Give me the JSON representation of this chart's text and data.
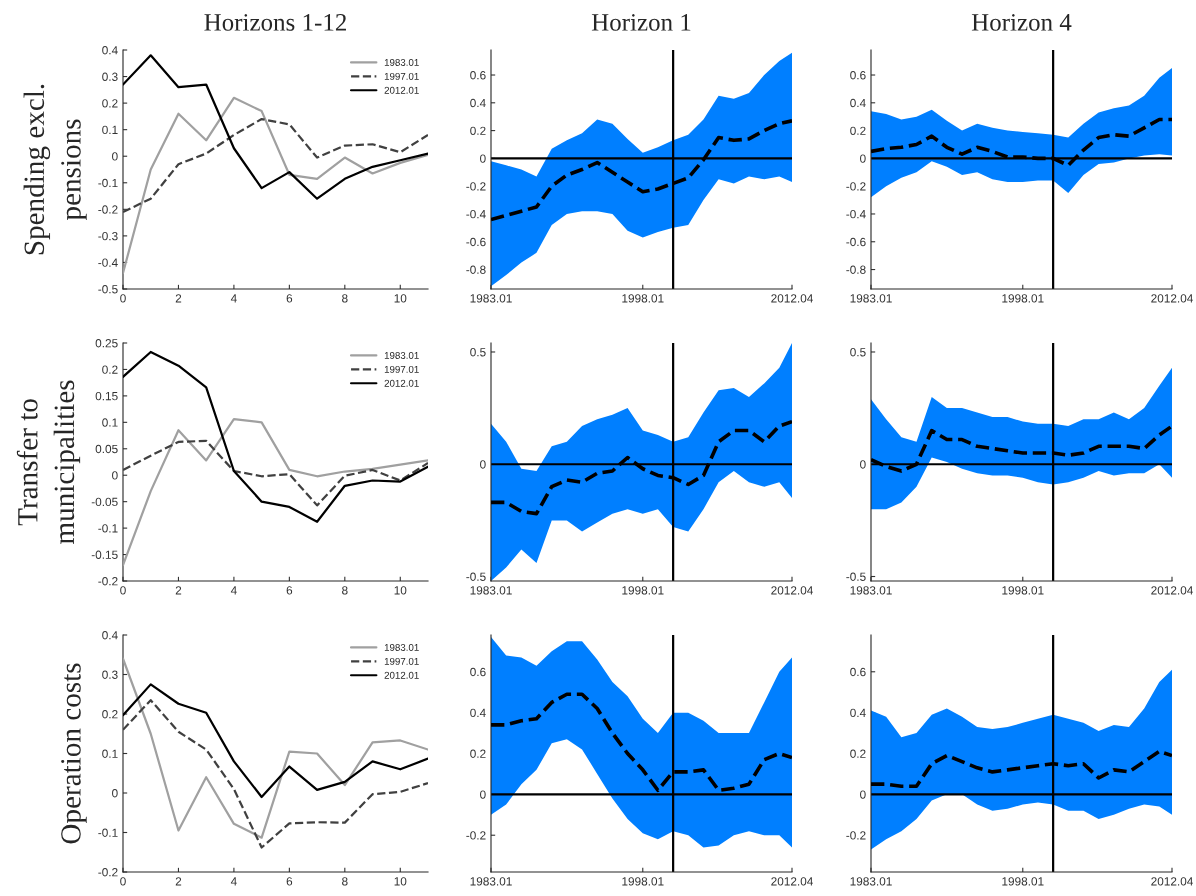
{
  "chart_data": [
    {
      "type": "line",
      "title": "Horizons 1-12",
      "ylabel": "Spending excl.\npensions",
      "x": [
        0,
        1,
        2,
        3,
        4,
        5,
        6,
        7,
        8,
        9,
        10,
        11
      ],
      "xlim": [
        0,
        11
      ],
      "xticks": [
        0,
        2,
        4,
        6,
        8,
        10
      ],
      "ylim": [
        -0.5,
        0.4
      ],
      "yticks": [
        -0.5,
        -0.4,
        -0.3,
        -0.2,
        -0.1,
        0,
        0.1,
        0.2,
        0.3,
        0.4
      ],
      "legend": "top right",
      "series": [
        {
          "name": "1983.01",
          "color": "#a0a0a0",
          "line_style": "solid",
          "values": [
            -0.44,
            -0.05,
            0.16,
            0.06,
            0.22,
            0.17,
            -0.07,
            -0.085,
            -0.005,
            -0.065,
            -0.025,
            0.005
          ]
        },
        {
          "name": "1997.01",
          "color": "#404040",
          "line_style": "dashed",
          "values": [
            -0.21,
            -0.16,
            -0.03,
            0.01,
            0.08,
            0.14,
            0.12,
            -0.005,
            0.04,
            0.045,
            0.015,
            0.08
          ]
        },
        {
          "name": "2012.01",
          "color": "#000000",
          "line_style": "solid",
          "values": [
            0.27,
            0.38,
            0.26,
            0.27,
            0.03,
            -0.12,
            -0.06,
            -0.16,
            -0.085,
            -0.04,
            -0.015,
            0.01
          ]
        }
      ]
    },
    {
      "type": "line",
      "title": "Horizon 1",
      "x": [
        "1983-01",
        "1984-07",
        "1986-01",
        "1987-07",
        "1989-01",
        "1990-07",
        "1992-01",
        "1993-07",
        "1995-01",
        "1996-07",
        "1998-01",
        "1999-07",
        "2001-01",
        "2002-07",
        "2004-01",
        "2005-07",
        "2007-01",
        "2008-07",
        "2010-01",
        "2011-07",
        "2012-10"
      ],
      "xlim": [
        "1983-01",
        "2012-10"
      ],
      "xticks": [
        {
          "value": "1983-01",
          "label": "1983.01"
        },
        {
          "value": "1998-01",
          "label": "1998.01"
        },
        {
          "value": "2012-10",
          "label": "2012.04"
        }
      ],
      "ylim": [
        -0.94,
        0.78
      ],
      "yticks": [
        -0.8,
        -0.6,
        -0.4,
        -0.2,
        0,
        0.2,
        0.4,
        0.6
      ],
      "ref_lines": [
        {
          "axis": "x",
          "value": "2001-01",
          "color": "#000000"
        },
        {
          "axis": "y",
          "value": 0,
          "color": "#000000"
        }
      ],
      "series": [
        {
          "color": "#000000",
          "line_style": "dashed",
          "values": [
            -0.44,
            -0.41,
            -0.38,
            -0.35,
            -0.2,
            -0.12,
            -0.08,
            -0.03,
            -0.1,
            -0.17,
            -0.24,
            -0.22,
            -0.18,
            -0.14,
            -0.01,
            0.15,
            0.13,
            0.14,
            0.2,
            0.25,
            0.27
          ],
          "upper": [
            -0.02,
            -0.05,
            -0.08,
            -0.13,
            0.07,
            0.13,
            0.18,
            0.28,
            0.25,
            0.14,
            0.04,
            0.08,
            0.13,
            0.17,
            0.28,
            0.45,
            0.43,
            0.47,
            0.6,
            0.7,
            0.76
          ],
          "lower": [
            -0.92,
            -0.84,
            -0.75,
            -0.68,
            -0.48,
            -0.4,
            -0.38,
            -0.38,
            -0.4,
            -0.52,
            -0.57,
            -0.53,
            -0.5,
            -0.48,
            -0.3,
            -0.15,
            -0.18,
            -0.13,
            -0.15,
            -0.13,
            -0.17
          ]
        }
      ]
    },
    {
      "type": "line",
      "title": "Horizon 4",
      "x": [
        "1983-01",
        "1984-07",
        "1986-01",
        "1987-07",
        "1989-01",
        "1990-07",
        "1992-01",
        "1993-07",
        "1995-01",
        "1996-07",
        "1998-01",
        "1999-07",
        "2001-01",
        "2002-07",
        "2004-01",
        "2005-07",
        "2007-01",
        "2008-07",
        "2010-01",
        "2011-07",
        "2012-10"
      ],
      "xlim": [
        "1983-01",
        "2012-10"
      ],
      "xticks": [
        {
          "value": "1983-01",
          "label": "1983.01"
        },
        {
          "value": "1998-01",
          "label": "1998.01"
        },
        {
          "value": "2012-10",
          "label": "2012.04"
        }
      ],
      "ylim": [
        -0.94,
        0.78
      ],
      "yticks": [
        -0.8,
        -0.6,
        -0.4,
        -0.2,
        0,
        0.2,
        0.4,
        0.6
      ],
      "ref_lines": [
        {
          "axis": "x",
          "value": "2001-01",
          "color": "#000000"
        },
        {
          "axis": "y",
          "value": 0,
          "color": "#000000"
        }
      ],
      "series": [
        {
          "color": "#000000",
          "line_style": "dashed",
          "values": [
            0.05,
            0.07,
            0.08,
            0.1,
            0.16,
            0.08,
            0.03,
            0.08,
            0.05,
            0.01,
            0.01,
            0.0,
            0.0,
            -0.05,
            0.06,
            0.15,
            0.17,
            0.16,
            0.22,
            0.28,
            0.28
          ],
          "upper": [
            0.34,
            0.32,
            0.28,
            0.3,
            0.35,
            0.27,
            0.2,
            0.25,
            0.22,
            0.2,
            0.19,
            0.18,
            0.17,
            0.15,
            0.25,
            0.33,
            0.36,
            0.38,
            0.45,
            0.58,
            0.65
          ],
          "lower": [
            -0.28,
            -0.2,
            -0.14,
            -0.1,
            -0.02,
            -0.06,
            -0.12,
            -0.1,
            -0.15,
            -0.17,
            -0.17,
            -0.16,
            -0.16,
            -0.25,
            -0.12,
            -0.04,
            -0.03,
            0.0,
            0.02,
            0.03,
            0.02
          ]
        }
      ]
    },
    {
      "type": "line",
      "ylabel": "Transfer to\nmunicipalities",
      "x": [
        0,
        1,
        2,
        3,
        4,
        5,
        6,
        7,
        8,
        9,
        10,
        11
      ],
      "xlim": [
        0,
        11
      ],
      "xticks": [
        0,
        2,
        4,
        6,
        8,
        10
      ],
      "ylim": [
        -0.2,
        0.25
      ],
      "yticks": [
        -0.2,
        -0.15,
        -0.1,
        -0.05,
        0,
        0.05,
        0.1,
        0.15,
        0.2,
        0.25
      ],
      "legend": "top right",
      "series": [
        {
          "name": "1983.01",
          "color": "#a0a0a0",
          "line_style": "solid",
          "values": [
            -0.17,
            -0.03,
            0.085,
            0.028,
            0.106,
            0.1,
            0.01,
            -0.002,
            0.007,
            0.012,
            0.02,
            0.028
          ]
        },
        {
          "name": "1997.01",
          "color": "#404040",
          "line_style": "dashed",
          "values": [
            0.01,
            0.037,
            0.063,
            0.065,
            0.008,
            -0.002,
            0.002,
            -0.057,
            -0.001,
            0.01,
            -0.01,
            0.023
          ]
        },
        {
          "name": "2012.01",
          "color": "#000000",
          "line_style": "solid",
          "values": [
            0.186,
            0.233,
            0.207,
            0.166,
            0.008,
            -0.05,
            -0.06,
            -0.088,
            -0.02,
            -0.01,
            -0.012,
            0.016
          ]
        }
      ]
    },
    {
      "type": "line",
      "x": [
        "1983-01",
        "1984-07",
        "1986-01",
        "1987-07",
        "1989-01",
        "1990-07",
        "1992-01",
        "1993-07",
        "1995-01",
        "1996-07",
        "1998-01",
        "1999-07",
        "2001-01",
        "2002-07",
        "2004-01",
        "2005-07",
        "2007-01",
        "2008-07",
        "2010-01",
        "2011-07",
        "2012-10"
      ],
      "xlim": [
        "1983-01",
        "2012-10"
      ],
      "xticks": [
        {
          "value": "1983-01",
          "label": "1983.01"
        },
        {
          "value": "1998-01",
          "label": "1998.01"
        },
        {
          "value": "2012-10",
          "label": "2012.04"
        }
      ],
      "ylim": [
        -0.52,
        0.54
      ],
      "yticks": [
        -0.5,
        0,
        0.5
      ],
      "ref_lines": [
        {
          "axis": "x",
          "value": "2001-01",
          "color": "#000000"
        },
        {
          "axis": "y",
          "value": 0,
          "color": "#000000"
        }
      ],
      "series": [
        {
          "color": "#000000",
          "line_style": "dashed",
          "values": [
            -0.17,
            -0.17,
            -0.21,
            -0.22,
            -0.1,
            -0.07,
            -0.08,
            -0.04,
            -0.03,
            0.03,
            -0.02,
            -0.05,
            -0.06,
            -0.09,
            -0.05,
            0.1,
            0.15,
            0.15,
            0.1,
            0.17,
            0.19
          ],
          "upper": [
            0.18,
            0.1,
            -0.02,
            -0.03,
            0.08,
            0.1,
            0.17,
            0.2,
            0.22,
            0.25,
            0.15,
            0.13,
            0.1,
            0.12,
            0.23,
            0.33,
            0.34,
            0.3,
            0.36,
            0.43,
            0.54
          ],
          "lower": [
            -0.52,
            -0.46,
            -0.38,
            -0.44,
            -0.25,
            -0.25,
            -0.3,
            -0.26,
            -0.22,
            -0.2,
            -0.22,
            -0.2,
            -0.28,
            -0.3,
            -0.2,
            -0.08,
            -0.03,
            -0.08,
            -0.1,
            -0.08,
            -0.15
          ]
        }
      ]
    },
    {
      "type": "line",
      "x": [
        "1983-01",
        "1984-07",
        "1986-01",
        "1987-07",
        "1989-01",
        "1990-07",
        "1992-01",
        "1993-07",
        "1995-01",
        "1996-07",
        "1998-01",
        "1999-07",
        "2001-01",
        "2002-07",
        "2004-01",
        "2005-07",
        "2007-01",
        "2008-07",
        "2010-01",
        "2011-07",
        "2012-10"
      ],
      "xlim": [
        "1983-01",
        "2012-10"
      ],
      "xticks": [
        {
          "value": "1983-01",
          "label": "1983.01"
        },
        {
          "value": "1998-01",
          "label": "1998.01"
        },
        {
          "value": "2012-10",
          "label": "2012.04"
        }
      ],
      "ylim": [
        -0.52,
        0.54
      ],
      "yticks": [
        -0.5,
        0,
        0.5
      ],
      "ref_lines": [
        {
          "axis": "x",
          "value": "2001-01",
          "color": "#000000"
        },
        {
          "axis": "y",
          "value": 0,
          "color": "#000000"
        }
      ],
      "series": [
        {
          "color": "#000000",
          "line_style": "dashed",
          "values": [
            0.02,
            -0.01,
            -0.03,
            0.0,
            0.15,
            0.11,
            0.11,
            0.08,
            0.07,
            0.06,
            0.05,
            0.05,
            0.05,
            0.04,
            0.05,
            0.08,
            0.08,
            0.08,
            0.07,
            0.13,
            0.17
          ],
          "upper": [
            0.29,
            0.2,
            0.12,
            0.1,
            0.3,
            0.25,
            0.25,
            0.23,
            0.21,
            0.21,
            0.19,
            0.18,
            0.18,
            0.17,
            0.2,
            0.2,
            0.23,
            0.2,
            0.25,
            0.35,
            0.43
          ],
          "lower": [
            -0.2,
            -0.2,
            -0.17,
            -0.1,
            0.03,
            0.01,
            -0.02,
            -0.04,
            -0.05,
            -0.05,
            -0.06,
            -0.08,
            -0.09,
            -0.08,
            -0.06,
            -0.03,
            -0.05,
            -0.04,
            -0.04,
            0.0,
            -0.06
          ]
        }
      ]
    },
    {
      "type": "line",
      "ylabel": "Operation costs",
      "x": [
        0,
        1,
        2,
        3,
        4,
        5,
        6,
        7,
        8,
        9,
        10,
        11
      ],
      "xlim": [
        0,
        11
      ],
      "xticks": [
        0,
        2,
        4,
        6,
        8,
        10
      ],
      "ylim": [
        -0.2,
        0.4
      ],
      "yticks": [
        -0.2,
        -0.1,
        0,
        0.1,
        0.2,
        0.3,
        0.4
      ],
      "legend": "top right",
      "series": [
        {
          "name": "1983.01",
          "color": "#a0a0a0",
          "line_style": "solid",
          "values": [
            0.34,
            0.15,
            -0.095,
            0.04,
            -0.078,
            -0.113,
            0.105,
            0.1,
            0.02,
            0.128,
            0.133,
            0.11
          ]
        },
        {
          "name": "1997.01",
          "color": "#404040",
          "line_style": "dashed",
          "values": [
            0.16,
            0.235,
            0.155,
            0.11,
            0.01,
            -0.138,
            -0.077,
            -0.074,
            -0.075,
            -0.003,
            0.003,
            0.025
          ]
        },
        {
          "name": "2012.01",
          "color": "#000000",
          "line_style": "solid",
          "values": [
            0.197,
            0.275,
            0.226,
            0.203,
            0.08,
            -0.01,
            0.067,
            0.008,
            0.028,
            0.08,
            0.06,
            0.087
          ]
        }
      ]
    },
    {
      "type": "line",
      "x": [
        "1983-01",
        "1984-07",
        "1986-01",
        "1987-07",
        "1989-01",
        "1990-07",
        "1992-01",
        "1993-07",
        "1995-01",
        "1996-07",
        "1998-01",
        "1999-07",
        "2001-01",
        "2002-07",
        "2004-01",
        "2005-07",
        "2007-01",
        "2008-07",
        "2010-01",
        "2011-07",
        "2012-10"
      ],
      "xlim": [
        "1983-01",
        "2012-10"
      ],
      "xticks": [
        {
          "value": "1983-01",
          "label": "1983.01"
        },
        {
          "value": "1998-01",
          "label": "1998.01"
        },
        {
          "value": "2012-10",
          "label": "2012.04"
        }
      ],
      "ylim": [
        -0.38,
        0.78
      ],
      "yticks": [
        -0.2,
        0,
        0.2,
        0.4,
        0.6
      ],
      "ref_lines": [
        {
          "axis": "x",
          "value": "2001-01",
          "color": "#000000"
        },
        {
          "axis": "y",
          "value": 0,
          "color": "#000000"
        }
      ],
      "series": [
        {
          "color": "#000000",
          "line_style": "dashed",
          "values": [
            0.34,
            0.34,
            0.36,
            0.37,
            0.45,
            0.49,
            0.49,
            0.42,
            0.3,
            0.2,
            0.12,
            0.02,
            0.11,
            0.11,
            0.12,
            0.02,
            0.03,
            0.05,
            0.17,
            0.2,
            0.18
          ],
          "upper": [
            0.77,
            0.68,
            0.67,
            0.63,
            0.7,
            0.75,
            0.75,
            0.66,
            0.55,
            0.48,
            0.37,
            0.3,
            0.4,
            0.4,
            0.36,
            0.3,
            0.3,
            0.3,
            0.45,
            0.6,
            0.67
          ],
          "lower": [
            -0.1,
            -0.05,
            0.05,
            0.12,
            0.25,
            0.27,
            0.22,
            0.1,
            -0.02,
            -0.12,
            -0.19,
            -0.22,
            -0.18,
            -0.2,
            -0.26,
            -0.25,
            -0.2,
            -0.18,
            -0.2,
            -0.2,
            -0.26
          ]
        }
      ]
    },
    {
      "type": "line",
      "x": [
        "1983-01",
        "1984-07",
        "1986-01",
        "1987-07",
        "1989-01",
        "1990-07",
        "1992-01",
        "1993-07",
        "1995-01",
        "1996-07",
        "1998-01",
        "1999-07",
        "2001-01",
        "2002-07",
        "2004-01",
        "2005-07",
        "2007-01",
        "2008-07",
        "2010-01",
        "2011-07",
        "2012-10"
      ],
      "xlim": [
        "1983-01",
        "2012-10"
      ],
      "xticks": [
        {
          "value": "1983-01",
          "label": "1983.01"
        },
        {
          "value": "1998-01",
          "label": "1998.01"
        },
        {
          "value": "2012-10",
          "label": "2012.04"
        }
      ],
      "ylim": [
        -0.38,
        0.78
      ],
      "yticks": [
        -0.2,
        0,
        0.2,
        0.4,
        0.6
      ],
      "ref_lines": [
        {
          "axis": "x",
          "value": "2001-01",
          "color": "#000000"
        },
        {
          "axis": "y",
          "value": 0,
          "color": "#000000"
        }
      ],
      "series": [
        {
          "color": "#000000",
          "line_style": "dashed",
          "values": [
            0.05,
            0.05,
            0.04,
            0.04,
            0.15,
            0.19,
            0.16,
            0.13,
            0.11,
            0.12,
            0.13,
            0.14,
            0.15,
            0.14,
            0.15,
            0.08,
            0.12,
            0.11,
            0.16,
            0.21,
            0.19
          ],
          "upper": [
            0.41,
            0.38,
            0.28,
            0.3,
            0.39,
            0.42,
            0.38,
            0.33,
            0.32,
            0.33,
            0.35,
            0.37,
            0.39,
            0.37,
            0.35,
            0.31,
            0.34,
            0.33,
            0.42,
            0.55,
            0.61
          ],
          "lower": [
            -0.27,
            -0.22,
            -0.18,
            -0.12,
            -0.03,
            0.0,
            0.0,
            -0.05,
            -0.08,
            -0.07,
            -0.05,
            -0.04,
            -0.05,
            -0.08,
            -0.08,
            -0.12,
            -0.1,
            -0.07,
            -0.05,
            -0.06,
            -0.1
          ]
        }
      ]
    }
  ]
}
